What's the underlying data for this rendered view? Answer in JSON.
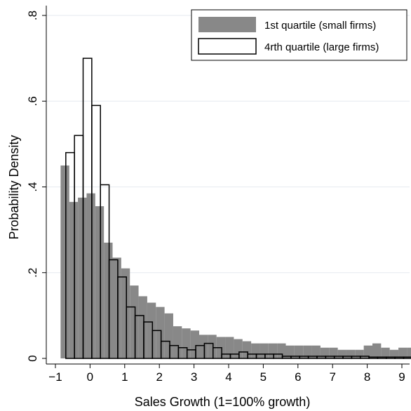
{
  "chart_data": {
    "type": "bar",
    "xlabel": "Sales Growth (1=100% growth)",
    "ylabel": "Probability Density",
    "xlim": [
      -1,
      9
    ],
    "ylim": [
      0,
      0.8
    ],
    "x_ticks": [
      -1,
      0,
      1,
      2,
      3,
      4,
      5,
      6,
      7,
      8,
      9
    ],
    "x_tick_labels": [
      "−1",
      "0",
      "1",
      "2",
      "3",
      "4",
      "5",
      "6",
      "7",
      "8",
      "9"
    ],
    "y_ticks": [
      0,
      0.2,
      0.4,
      0.6,
      0.8
    ],
    "y_tick_labels": [
      "0",
      ".2",
      ".4",
      ".6",
      ".8"
    ],
    "bin_width": 0.25,
    "grid": true,
    "legend_position": "top-right",
    "series": [
      {
        "name": "1st quartile (small firms)",
        "style": "filled",
        "color": "#888888",
        "x_start": -0.85,
        "values": [
          0.45,
          0.365,
          0.375,
          0.385,
          0.355,
          0.27,
          0.235,
          0.21,
          0.17,
          0.145,
          0.13,
          0.12,
          0.105,
          0.075,
          0.07,
          0.065,
          0.055,
          0.055,
          0.05,
          0.05,
          0.045,
          0.04,
          0.035,
          0.035,
          0.035,
          0.035,
          0.03,
          0.03,
          0.03,
          0.03,
          0.025,
          0.025,
          0.02,
          0.02,
          0.02,
          0.03,
          0.035,
          0.025,
          0.02,
          0.025,
          0.025,
          0.02
        ]
      },
      {
        "name": "4rth quartile (large firms)",
        "style": "outline",
        "color": "#000000",
        "x_start": -0.7,
        "values": [
          0.48,
          0.52,
          0.7,
          0.59,
          0.405,
          0.23,
          0.19,
          0.12,
          0.1,
          0.085,
          0.065,
          0.04,
          0.03,
          0.025,
          0.02,
          0.03,
          0.035,
          0.025,
          0.01,
          0.01,
          0.015,
          0.01,
          0.01,
          0.01,
          0.01,
          0.005,
          0.005,
          0.005,
          0.005,
          0.005,
          0.005,
          0.005,
          0.005,
          0.005,
          0.005,
          0.003,
          0.003,
          0.003,
          0.003,
          0.003
        ]
      }
    ]
  }
}
